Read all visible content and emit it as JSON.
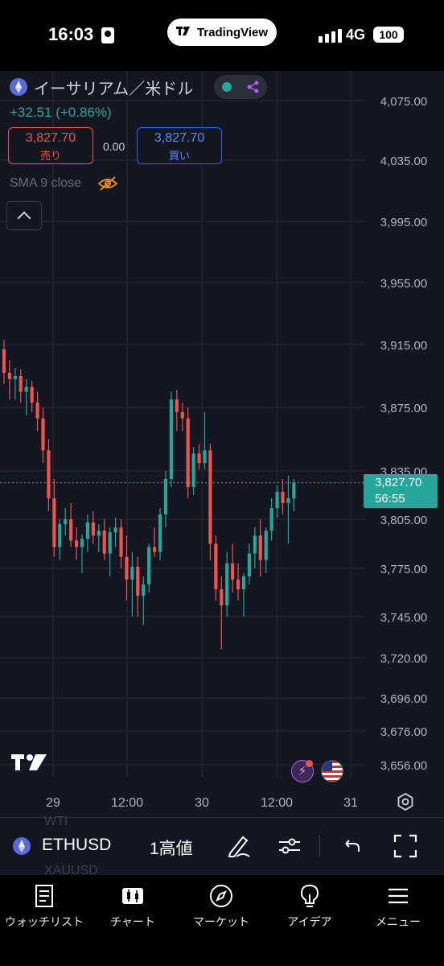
{
  "status_bar": {
    "time": "16:03",
    "app_pill": "TradingView",
    "network": "4G",
    "battery": "100"
  },
  "header": {
    "symbol_name": "イーサリアム／米ドル",
    "change": "+32.51 (+0.86%)",
    "bid_price": "3,827.70",
    "bid_label": "売り",
    "spread": "0.00",
    "ask_price": "3,827.70",
    "ask_label": "買い",
    "indicator_label": "SMA 9 close"
  },
  "price_axis": {
    "ticks": [
      "4,075.00",
      "4,035.00",
      "3,995.00",
      "3,955.00",
      "3,915.00",
      "3,875.00",
      "3,835.00",
      "3,805.00",
      "3,775.00",
      "3,745.00",
      "3,720.00",
      "3,696.00",
      "3,676.00",
      "3,656.00"
    ]
  },
  "time_axis": {
    "ticks": [
      "29",
      "12:00",
      "30",
      "12:00",
      "31"
    ]
  },
  "current_price": {
    "price": "3,827.70",
    "countdown": "56:55"
  },
  "toolbar": {
    "ghost_top": "WTI",
    "ghost_bottom": "XAUUSD",
    "symbol": "ETHUSD",
    "interval": "1高値"
  },
  "bottom_nav": {
    "items": [
      {
        "label": "ウォッチリスト"
      },
      {
        "label": "チャート"
      },
      {
        "label": "マーケット"
      },
      {
        "label": "アイデア"
      },
      {
        "label": "メニュー"
      }
    ]
  },
  "colors": {
    "up": "#26a69a",
    "down": "#ef5350",
    "background": "#141722",
    "grid": "#242834"
  },
  "chart_data": {
    "type": "candlestick",
    "symbol": "ETHUSD",
    "y_ticks": [
      4075,
      4035,
      3995,
      3955,
      3915,
      3875,
      3835,
      3805,
      3775,
      3745,
      3720,
      3696,
      3676,
      3656
    ],
    "x_ticks": [
      "29",
      "12:00",
      "30",
      "12:00",
      "31"
    ],
    "last_price": 3827.7,
    "candles": [
      [
        3912,
        3918,
        3890,
        3897
      ],
      [
        3897,
        3905,
        3880,
        3893
      ],
      [
        3893,
        3900,
        3880,
        3895
      ],
      [
        3895,
        3899,
        3878,
        3885
      ],
      [
        3885,
        3893,
        3870,
        3888
      ],
      [
        3888,
        3892,
        3872,
        3878
      ],
      [
        3878,
        3885,
        3860,
        3868
      ],
      [
        3868,
        3875,
        3840,
        3848
      ],
      [
        3848,
        3855,
        3810,
        3818
      ],
      [
        3818,
        3830,
        3782,
        3788
      ],
      [
        3788,
        3805,
        3780,
        3802
      ],
      [
        3802,
        3812,
        3795,
        3805
      ],
      [
        3805,
        3815,
        3788,
        3792
      ],
      [
        3792,
        3800,
        3780,
        3788
      ],
      [
        3788,
        3796,
        3772,
        3793
      ],
      [
        3793,
        3808,
        3785,
        3803
      ],
      [
        3803,
        3810,
        3790,
        3795
      ],
      [
        3795,
        3802,
        3785,
        3798
      ],
      [
        3798,
        3805,
        3780,
        3784
      ],
      [
        3784,
        3800,
        3770,
        3797
      ],
      [
        3797,
        3806,
        3788,
        3800
      ],
      [
        3800,
        3805,
        3775,
        3782
      ],
      [
        3782,
        3795,
        3755,
        3768
      ],
      [
        3768,
        3785,
        3745,
        3776
      ],
      [
        3776,
        3782,
        3745,
        3758
      ],
      [
        3758,
        3770,
        3740,
        3765
      ],
      [
        3765,
        3790,
        3760,
        3788
      ],
      [
        3788,
        3800,
        3782,
        3785
      ],
      [
        3785,
        3812,
        3780,
        3808
      ],
      [
        3808,
        3835,
        3800,
        3830
      ],
      [
        3830,
        3885,
        3825,
        3880
      ],
      [
        3880,
        3886,
        3860,
        3872
      ],
      [
        3872,
        3878,
        3860,
        3868
      ],
      [
        3868,
        3875,
        3818,
        3825
      ],
      [
        3825,
        3850,
        3820,
        3846
      ],
      [
        3846,
        3852,
        3836,
        3840
      ],
      [
        3840,
        3872,
        3836,
        3848
      ],
      [
        3848,
        3852,
        3780,
        3790
      ],
      [
        3790,
        3795,
        3755,
        3762
      ],
      [
        3762,
        3770,
        3725,
        3752
      ],
      [
        3752,
        3785,
        3745,
        3778
      ],
      [
        3778,
        3790,
        3760,
        3768
      ],
      [
        3768,
        3778,
        3755,
        3762
      ],
      [
        3762,
        3772,
        3745,
        3770
      ],
      [
        3770,
        3790,
        3765,
        3784
      ],
      [
        3784,
        3800,
        3775,
        3795
      ],
      [
        3795,
        3805,
        3770,
        3780
      ],
      [
        3780,
        3800,
        3772,
        3798
      ],
      [
        3798,
        3818,
        3792,
        3812
      ],
      [
        3812,
        3826,
        3806,
        3822
      ],
      [
        3822,
        3830,
        3808,
        3815
      ],
      [
        3815,
        3832,
        3790,
        3818
      ],
      [
        3818,
        3830,
        3810,
        3827.7
      ]
    ]
  }
}
